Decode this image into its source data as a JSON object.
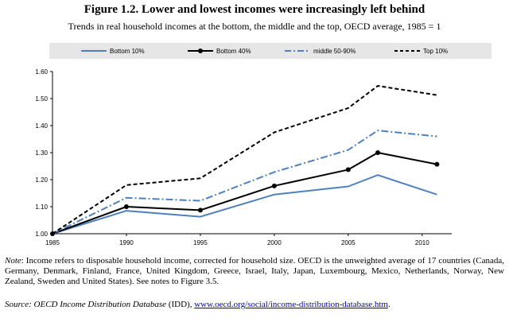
{
  "figure": {
    "title": "Figure 1.2. Lower and lowest incomes were increasingly left behind",
    "subtitle": "Trends in real household incomes at the bottom, the middle and the top, OECD average, 1985 = 1"
  },
  "chart_data": {
    "type": "line",
    "x": [
      1985,
      1990,
      1995,
      2000,
      2005,
      2007,
      2011
    ],
    "xticks": [
      "1985",
      "1990",
      "1995",
      "2000",
      "2005",
      "2010"
    ],
    "yticks": [
      "1.00",
      "1.10",
      "1.20",
      "1.30",
      "1.40",
      "1.50",
      "1.60"
    ],
    "ylim": [
      1.0,
      1.6
    ],
    "xlim": [
      1985,
      2012
    ],
    "legend_position": "top",
    "series": [
      {
        "name": "Bottom 10%",
        "color": "#4f81bd",
        "style": "solid",
        "markers": false,
        "values": [
          1.0,
          1.085,
          1.063,
          1.145,
          1.175,
          1.217,
          1.145
        ]
      },
      {
        "name": "Bottom 40%",
        "color": "#000000",
        "style": "solid",
        "markers": true,
        "values": [
          1.0,
          1.1,
          1.087,
          1.177,
          1.237,
          1.3,
          1.257
        ]
      },
      {
        "name": "middle 50-90%",
        "color": "#4f81bd",
        "style": "dashdot",
        "markers": false,
        "values": [
          1.0,
          1.133,
          1.122,
          1.228,
          1.31,
          1.382,
          1.36
        ]
      },
      {
        "name": "Top 10%",
        "color": "#000000",
        "style": "dashed",
        "markers": false,
        "values": [
          1.0,
          1.18,
          1.205,
          1.375,
          1.465,
          1.547,
          1.513
        ]
      }
    ]
  },
  "note": {
    "label": "Note",
    "text": ": Income refers to disposable household income, corrected for household size. OECD is the unweighted average of 17 countries (Canada, Germany, Denmark, Finland, France, United Kingdom, Greece, Israel, Italy, Japan, Luxembourg, Mexico, Netherlands, Norway, New Zealand, Sweden and United States). See notes to Figure 3.5."
  },
  "source": {
    "label": "Source",
    "database": ": OECD Income Distribution Database",
    "abbr": " (IDD), ",
    "url": "www.oecd.org/social/income-distribution-database.htm",
    "end": "."
  }
}
